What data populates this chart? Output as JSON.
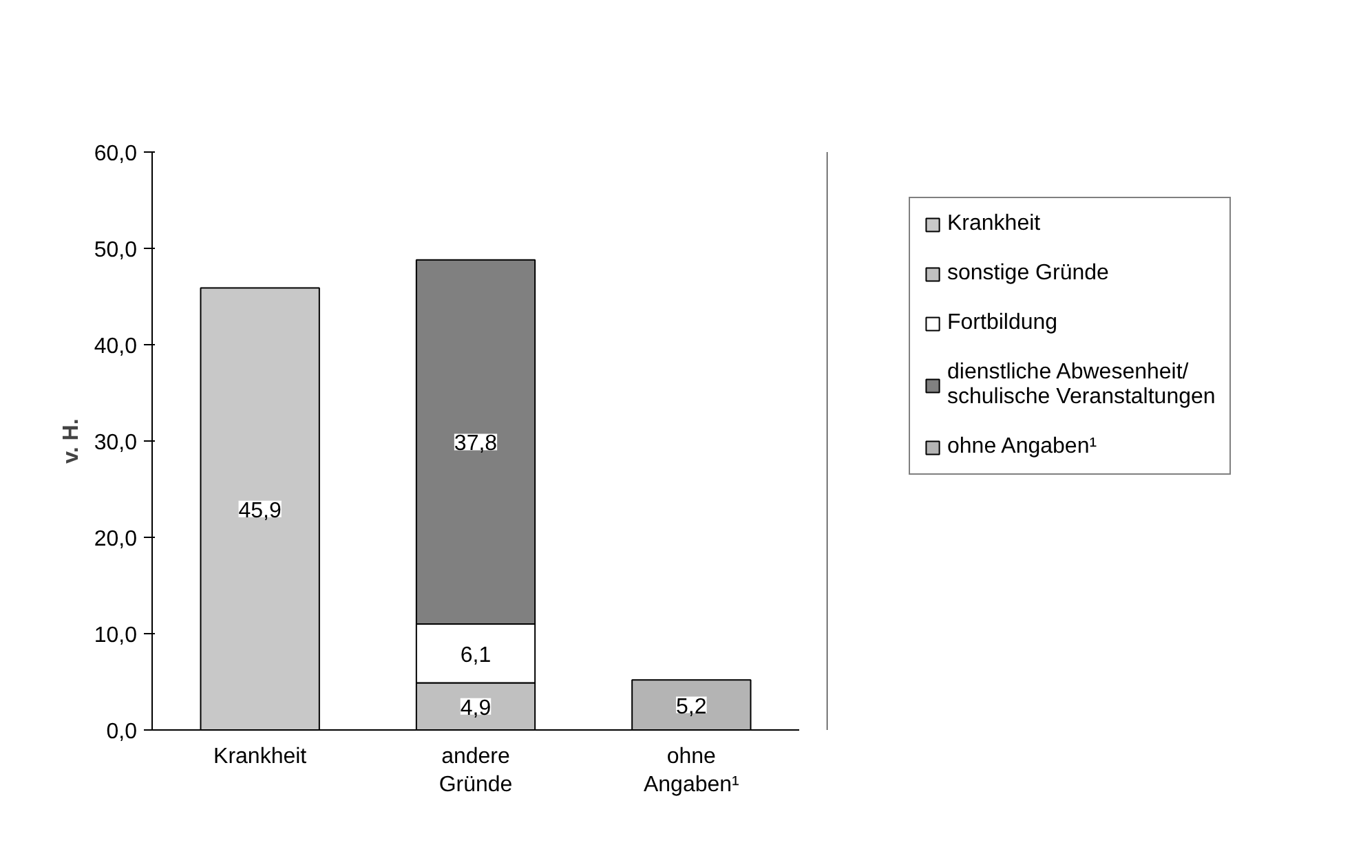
{
  "chart_data": {
    "type": "bar",
    "stacked": true,
    "ylabel": "v. H.",
    "categories": [
      "Krankheit",
      "andere Gründe",
      "ohne Angaben¹"
    ],
    "series": [
      {
        "name": "Krankheit",
        "color": "#c8c8c8",
        "values": [
          45.9,
          null,
          null
        ],
        "value_labels": [
          "45,9",
          null,
          null
        ]
      },
      {
        "name": "sonstige Gründe",
        "color": "#c0c0c0",
        "values": [
          null,
          4.9,
          null
        ],
        "value_labels": [
          null,
          "4,9",
          null
        ]
      },
      {
        "name": "Fortbildung",
        "color": "#ffffff",
        "values": [
          null,
          6.1,
          null
        ],
        "value_labels": [
          null,
          "6,1",
          null
        ]
      },
      {
        "name": "dienstliche Abwesenheit/ schulische Veranstaltungen",
        "color": "#808080",
        "values": [
          null,
          37.8,
          null
        ],
        "value_labels": [
          null,
          "37,8",
          null
        ]
      },
      {
        "name": "ohne Angaben¹",
        "color": "#b4b4b4",
        "values": [
          null,
          null,
          5.2
        ],
        "value_labels": [
          null,
          null,
          "5,2"
        ]
      }
    ],
    "ylim": [
      0,
      60
    ],
    "yticks": [
      {
        "value": 0,
        "label": "0,0"
      },
      {
        "value": 10,
        "label": "10,0"
      },
      {
        "value": 20,
        "label": "20,0"
      },
      {
        "value": 30,
        "label": "30,0"
      },
      {
        "value": 40,
        "label": "40,0"
      },
      {
        "value": 50,
        "label": "50,0"
      },
      {
        "value": 60,
        "label": "60,0"
      }
    ],
    "grid": false,
    "legend": "right"
  }
}
